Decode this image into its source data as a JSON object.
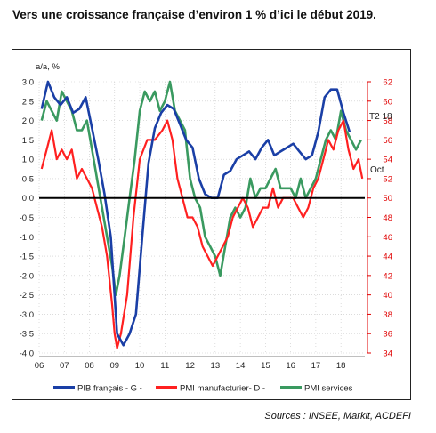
{
  "title": "Vers une croissance française d’environ 1 % d’ici le début 2019.",
  "source": "Sources : INSEE, Markit, ACDEFI",
  "chart_data": {
    "type": "line",
    "ylabel_left": "a/a, %",
    "ylim_left": [
      -4.0,
      3.0
    ],
    "ylim_right": [
      34,
      62
    ],
    "yticks_left": [
      "3,0",
      "2,5",
      "2,0",
      "1,5",
      "1,0",
      "0,5",
      "0,0",
      "-0,5",
      "-1,0",
      "-1,5",
      "-2,0",
      "-2,5",
      "-3,0",
      "-3,5",
      "-4,0"
    ],
    "yticks_right": [
      "62",
      "60",
      "58",
      "56",
      "54",
      "52",
      "50",
      "48",
      "46",
      "44",
      "42",
      "40",
      "38",
      "36",
      "34"
    ],
    "xticks": [
      "06",
      "07",
      "08",
      "09",
      "10",
      "11",
      "12",
      "13",
      "14",
      "15",
      "16",
      "17",
      "18"
    ],
    "xlim": [
      2006.0,
      2018.95
    ],
    "annotations": [
      "T2 18",
      "Oct"
    ],
    "colors": {
      "pib": "#1a3fa6",
      "manuf": "#ff2020",
      "services": "#3a9a60",
      "zero": "#000000"
    },
    "series": [
      {
        "name": "PIB français - G -",
        "axis": "left",
        "x": [
          2006.1,
          2006.35,
          2006.6,
          2006.85,
          2007.1,
          2007.35,
          2007.6,
          2007.85,
          2008.1,
          2008.35,
          2008.6,
          2008.85,
          2009.1,
          2009.35,
          2009.6,
          2009.85,
          2010.1,
          2010.35,
          2010.6,
          2010.85,
          2011.1,
          2011.35,
          2011.6,
          2011.85,
          2012.1,
          2012.35,
          2012.6,
          2012.85,
          2013.1,
          2013.35,
          2013.6,
          2013.85,
          2014.1,
          2014.35,
          2014.6,
          2014.85,
          2015.1,
          2015.35,
          2015.6,
          2015.85,
          2016.1,
          2016.35,
          2016.6,
          2016.85,
          2017.1,
          2017.35,
          2017.6,
          2017.85,
          2018.1,
          2018.35
        ],
        "values": [
          2.3,
          3.0,
          2.6,
          2.4,
          2.6,
          2.2,
          2.3,
          2.6,
          1.8,
          1.0,
          0.1,
          -1.0,
          -3.5,
          -3.8,
          -3.5,
          -3.0,
          -1.0,
          0.9,
          1.8,
          2.2,
          2.4,
          2.3,
          1.9,
          1.5,
          1.3,
          0.5,
          0.1,
          0.0,
          0.0,
          0.6,
          0.7,
          1.0,
          1.1,
          1.2,
          1.0,
          1.3,
          1.5,
          1.1,
          1.2,
          1.3,
          1.4,
          1.2,
          1.0,
          1.1,
          1.7,
          2.6,
          2.8,
          2.8,
          2.2,
          1.7
        ]
      },
      {
        "name": "PMI manufacturier- D -",
        "axis": "right",
        "x": [
          2006.1,
          2006.3,
          2006.5,
          2006.7,
          2006.9,
          2007.1,
          2007.3,
          2007.5,
          2007.7,
          2007.9,
          2008.1,
          2008.3,
          2008.5,
          2008.7,
          2008.9,
          2009.0,
          2009.1,
          2009.25,
          2009.5,
          2009.75,
          2010.0,
          2010.3,
          2010.6,
          2010.9,
          2011.1,
          2011.3,
          2011.5,
          2011.7,
          2011.9,
          2012.1,
          2012.3,
          2012.5,
          2012.7,
          2012.9,
          2013.1,
          2013.3,
          2013.5,
          2013.7,
          2013.9,
          2014.1,
          2014.3,
          2014.5,
          2014.7,
          2014.9,
          2015.1,
          2015.3,
          2015.5,
          2015.7,
          2015.9,
          2016.1,
          2016.3,
          2016.5,
          2016.7,
          2016.9,
          2017.1,
          2017.3,
          2017.5,
          2017.7,
          2017.9,
          2018.1,
          2018.3,
          2018.5,
          2018.7,
          2018.85
        ],
        "values": [
          53,
          55,
          57,
          54,
          55,
          54,
          55,
          52,
          53,
          52,
          51,
          49,
          47,
          44,
          39,
          36,
          34.5,
          36,
          40,
          48,
          54,
          56,
          56,
          57,
          58,
          56,
          52,
          50,
          48,
          48,
          47,
          45,
          44,
          43,
          44,
          45,
          46,
          48,
          49,
          50,
          49,
          47,
          48,
          49,
          49,
          51,
          49,
          50,
          50,
          50,
          49,
          48,
          49,
          51,
          52,
          54,
          56,
          55,
          57,
          58,
          55,
          53,
          54,
          52
        ]
      },
      {
        "name": "PMI services",
        "axis": "right",
        "x": [
          2006.1,
          2006.3,
          2006.5,
          2006.7,
          2006.9,
          2007.1,
          2007.3,
          2007.5,
          2007.7,
          2007.9,
          2008.1,
          2008.3,
          2008.5,
          2008.7,
          2008.9,
          2009.05,
          2009.2,
          2009.4,
          2009.6,
          2009.8,
          2010.0,
          2010.2,
          2010.4,
          2010.6,
          2010.8,
          2011.0,
          2011.2,
          2011.4,
          2011.6,
          2011.8,
          2012.0,
          2012.2,
          2012.4,
          2012.6,
          2012.8,
          2013.0,
          2013.2,
          2013.4,
          2013.6,
          2013.8,
          2014.0,
          2014.2,
          2014.4,
          2014.6,
          2014.8,
          2015.0,
          2015.2,
          2015.4,
          2015.6,
          2015.8,
          2016.0,
          2016.2,
          2016.4,
          2016.6,
          2016.8,
          2017.0,
          2017.2,
          2017.4,
          2017.6,
          2017.8,
          2018.0,
          2018.2,
          2018.4,
          2018.6,
          2018.8
        ],
        "values": [
          58,
          60,
          59,
          58,
          61,
          60,
          59,
          57,
          57,
          58,
          55,
          52,
          49,
          46,
          43,
          40,
          42,
          46,
          50,
          54,
          59,
          61,
          60,
          61,
          59,
          60,
          62,
          59,
          58,
          57,
          52,
          50,
          49,
          46,
          45,
          44,
          42,
          45,
          48,
          49,
          48,
          49,
          52,
          50,
          51,
          51,
          52,
          53,
          51,
          51,
          51,
          50,
          52,
          50,
          51,
          52,
          54,
          56,
          57,
          56,
          59,
          57,
          56,
          55,
          56
        ]
      }
    ]
  }
}
